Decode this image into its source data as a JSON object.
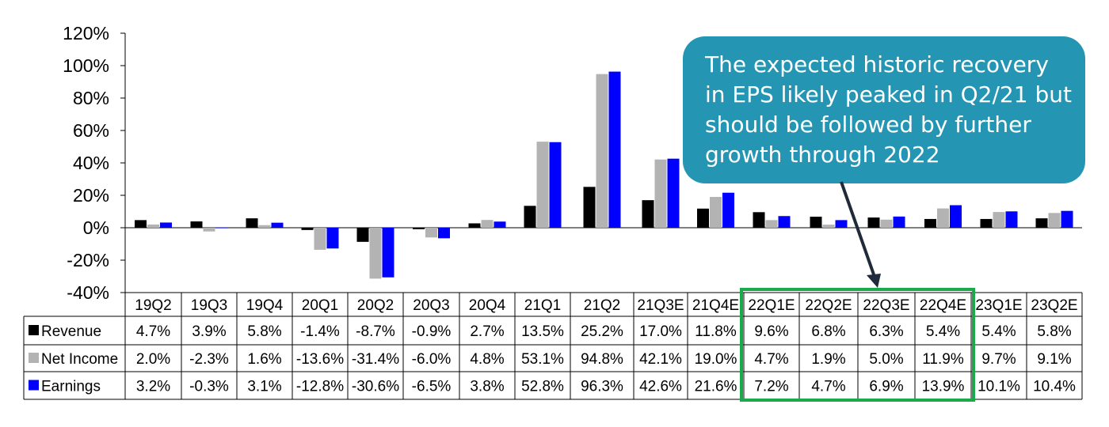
{
  "chart_data": {
    "type": "bar",
    "categories": [
      "19Q2",
      "19Q3",
      "19Q4",
      "20Q1",
      "20Q2",
      "20Q3",
      "20Q4",
      "21Q1",
      "21Q2",
      "21Q3E",
      "21Q4E",
      "22Q1E",
      "22Q2E",
      "22Q3E",
      "22Q4E",
      "23Q1E",
      "23Q2E"
    ],
    "series": [
      {
        "name": "Revenue",
        "color": "#000000",
        "values": [
          4.7,
          3.9,
          5.8,
          -1.4,
          -8.7,
          -0.9,
          2.7,
          13.5,
          25.2,
          17.0,
          11.8,
          9.6,
          6.8,
          6.3,
          5.4,
          5.4,
          5.8
        ],
        "labels": [
          "4.7%",
          "3.9%",
          "5.8%",
          "-1.4%",
          "-8.7%",
          "-0.9%",
          "2.7%",
          "13.5%",
          "25.2%",
          "17.0%",
          "11.8%",
          "9.6%",
          "6.8%",
          "6.3%",
          "5.4%",
          "5.4%",
          "5.8%"
        ]
      },
      {
        "name": "Net Income",
        "color": "#b3b3b3",
        "values": [
          2.0,
          -2.3,
          1.6,
          -13.6,
          -31.4,
          -6.0,
          4.8,
          53.1,
          94.8,
          42.1,
          19.0,
          4.7,
          1.9,
          5.0,
          11.9,
          9.7,
          9.1
        ],
        "labels": [
          "2.0%",
          "-2.3%",
          "1.6%",
          "-13.6%",
          "-31.4%",
          "-6.0%",
          "4.8%",
          "53.1%",
          "94.8%",
          "42.1%",
          "19.0%",
          "4.7%",
          "1.9%",
          "5.0%",
          "11.9%",
          "9.7%",
          "9.1%"
        ]
      },
      {
        "name": "Earnings",
        "color": "#0000ff",
        "values": [
          3.2,
          -0.3,
          3.1,
          -12.8,
          -30.6,
          -6.5,
          3.8,
          52.8,
          96.3,
          42.6,
          21.6,
          7.2,
          4.7,
          6.9,
          13.9,
          10.1,
          10.4
        ],
        "labels": [
          "3.2%",
          "-0.3%",
          "3.1%",
          "-12.8%",
          "-30.6%",
          "-6.5%",
          "3.8%",
          "52.8%",
          "96.3%",
          "42.6%",
          "21.6%",
          "7.2%",
          "4.7%",
          "6.9%",
          "13.9%",
          "10.1%",
          "10.4%"
        ]
      }
    ],
    "ylim": [
      -40,
      120
    ],
    "yticks": [
      "120%",
      "100%",
      "80%",
      "60%",
      "40%",
      "20%",
      "0%",
      "-20%",
      "-40%"
    ],
    "legend_placement": "data-table",
    "annotation": {
      "lines": [
        "The expected historic recovery",
        "in EPS likely peaked in Q2/21 but",
        "should be followed by further",
        "growth through 2022"
      ],
      "color": "#2496b3"
    },
    "highlight": {
      "categories": [
        "22Q1E",
        "22Q2E",
        "22Q3E",
        "22Q4E"
      ],
      "color": "#1aaa4a"
    }
  }
}
